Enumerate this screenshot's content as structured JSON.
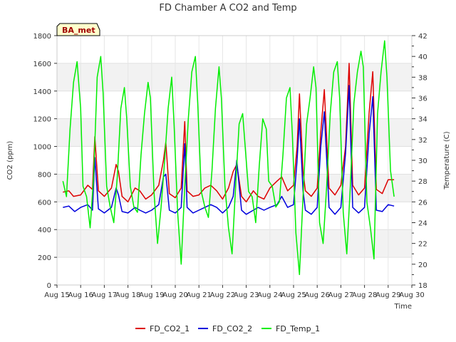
{
  "chart_data": {
    "type": "line",
    "title": "FD Chamber A CO2 and Temp",
    "xlabel": "Time",
    "ylabel": "CO2 (ppm)",
    "y2label": "Temperature (C)",
    "site_badge": "BA_met",
    "categories": [
      "Aug 15",
      "Aug 16",
      "Aug 17",
      "Aug 18",
      "Aug 19",
      "Aug 20",
      "Aug 21",
      "Aug 22",
      "Aug 23",
      "Aug 24",
      "Aug 25",
      "Aug 26",
      "Aug 27",
      "Aug 28",
      "Aug 29",
      "Aug 30"
    ],
    "xlim": [
      15,
      30
    ],
    "ylim": [
      0,
      1800
    ],
    "yticks": [
      0,
      200,
      400,
      600,
      800,
      1000,
      1200,
      1400,
      1600,
      1800
    ],
    "y2lim": [
      18,
      42
    ],
    "y2ticks": [
      18,
      20,
      22,
      24,
      26,
      28,
      30,
      32,
      34,
      36,
      38,
      40,
      42
    ],
    "grid": true,
    "legend_position": "bottom",
    "series": [
      {
        "name": "FD_CO2_1",
        "axis": "left",
        "color": "#dd0000",
        "x": [
          15.25,
          15.5,
          15.7,
          16.0,
          16.3,
          16.5,
          16.6,
          16.75,
          17.0,
          17.3,
          17.5,
          17.6,
          17.75,
          18.0,
          18.3,
          18.5,
          18.75,
          19.0,
          19.3,
          19.5,
          19.6,
          19.75,
          20.0,
          20.25,
          20.4,
          20.5,
          20.75,
          21.0,
          21.25,
          21.5,
          21.75,
          22.0,
          22.25,
          22.45,
          22.6,
          22.8,
          23.0,
          23.3,
          23.5,
          23.75,
          24.0,
          24.3,
          24.5,
          24.75,
          25.0,
          25.15,
          25.25,
          25.4,
          25.5,
          25.75,
          26.0,
          26.15,
          26.3,
          26.5,
          26.75,
          27.0,
          27.2,
          27.35,
          27.5,
          27.75,
          28.0,
          28.2,
          28.35,
          28.5,
          28.75,
          29.0,
          29.25
        ],
        "values": [
          670,
          680,
          640,
          650,
          720,
          690,
          1070,
          680,
          640,
          700,
          870,
          820,
          640,
          600,
          700,
          680,
          620,
          650,
          720,
          900,
          1030,
          660,
          630,
          700,
          1180,
          680,
          640,
          650,
          700,
          720,
          680,
          620,
          700,
          820,
          870,
          640,
          600,
          680,
          640,
          620,
          700,
          750,
          780,
          680,
          720,
          1000,
          1380,
          820,
          680,
          640,
          700,
          1100,
          1410,
          700,
          650,
          720,
          1000,
          1600,
          720,
          650,
          700,
          1250,
          1540,
          690,
          660,
          760,
          760
        ]
      },
      {
        "name": "FD_CO2_2",
        "axis": "left",
        "color": "#0000dd",
        "x": [
          15.25,
          15.5,
          15.75,
          16.0,
          16.3,
          16.5,
          16.6,
          16.75,
          17.0,
          17.3,
          17.5,
          17.6,
          17.75,
          18.0,
          18.3,
          18.5,
          18.75,
          19.0,
          19.3,
          19.5,
          19.6,
          19.75,
          20.0,
          20.25,
          20.4,
          20.5,
          20.75,
          21.0,
          21.25,
          21.5,
          21.75,
          22.0,
          22.25,
          22.45,
          22.6,
          22.8,
          23.0,
          23.3,
          23.5,
          23.75,
          24.0,
          24.3,
          24.5,
          24.75,
          25.0,
          25.15,
          25.25,
          25.4,
          25.5,
          25.75,
          26.0,
          26.15,
          26.3,
          26.5,
          26.75,
          27.0,
          27.2,
          27.35,
          27.5,
          27.75,
          28.0,
          28.2,
          28.35,
          28.5,
          28.75,
          29.0,
          29.25
        ],
        "values": [
          560,
          570,
          530,
          560,
          580,
          540,
          920,
          550,
          520,
          560,
          700,
          650,
          530,
          520,
          560,
          540,
          520,
          540,
          580,
          780,
          800,
          540,
          520,
          560,
          1020,
          560,
          520,
          540,
          560,
          580,
          560,
          520,
          560,
          640,
          900,
          540,
          510,
          540,
          560,
          540,
          560,
          580,
          640,
          560,
          580,
          900,
          1200,
          680,
          540,
          510,
          560,
          1000,
          1250,
          560,
          510,
          560,
          950,
          1440,
          560,
          520,
          560,
          1100,
          1360,
          540,
          530,
          580,
          570
        ]
      },
      {
        "name": "FD_Temp_1",
        "axis": "right",
        "color": "#00ee00",
        "x": [
          15.25,
          15.4,
          15.55,
          15.7,
          15.85,
          16.0,
          16.1,
          16.25,
          16.4,
          16.55,
          16.7,
          16.85,
          16.95,
          17.1,
          17.25,
          17.4,
          17.55,
          17.7,
          17.85,
          17.95,
          18.1,
          18.25,
          18.4,
          18.55,
          18.7,
          18.85,
          18.95,
          19.1,
          19.25,
          19.4,
          19.55,
          19.7,
          19.85,
          19.95,
          20.1,
          20.25,
          20.4,
          20.55,
          20.7,
          20.85,
          20.95,
          21.1,
          21.25,
          21.4,
          21.55,
          21.7,
          21.85,
          21.95,
          22.1,
          22.25,
          22.4,
          22.55,
          22.7,
          22.85,
          22.95,
          23.1,
          23.25,
          23.4,
          23.55,
          23.7,
          23.85,
          23.95,
          24.1,
          24.25,
          24.4,
          24.55,
          24.7,
          24.85,
          24.95,
          25.1,
          25.25,
          25.4,
          25.55,
          25.7,
          25.85,
          25.95,
          26.1,
          26.25,
          26.4,
          26.55,
          26.7,
          26.85,
          26.95,
          27.1,
          27.25,
          27.4,
          27.55,
          27.7,
          27.85,
          27.95,
          28.1,
          28.25,
          28.4,
          28.55,
          28.7,
          28.85,
          28.95,
          29.1,
          29.25
        ],
        "values": [
          28.0,
          26.5,
          33.0,
          37.5,
          39.5,
          35.0,
          27.5,
          26.5,
          23.5,
          28.5,
          38.0,
          40.0,
          36.5,
          27.5,
          25.5,
          24.0,
          28.5,
          35.0,
          37.0,
          34.0,
          27.5,
          25.5,
          25.0,
          30.5,
          34.5,
          37.5,
          36.0,
          27.0,
          22.0,
          25.5,
          30.0,
          35.0,
          38.0,
          33.5,
          25.0,
          20.0,
          27.5,
          34.0,
          38.5,
          40.0,
          35.5,
          27.0,
          25.5,
          24.5,
          29.0,
          35.0,
          39.0,
          36.0,
          27.5,
          23.5,
          21.0,
          27.5,
          33.5,
          34.5,
          31.5,
          27.0,
          26.5,
          24.0,
          29.5,
          34.0,
          33.0,
          28.0,
          27.5,
          25.5,
          26.0,
          30.5,
          36.0,
          37.0,
          32.5,
          23.0,
          19.0,
          26.5,
          33.5,
          36.0,
          39.0,
          37.0,
          24.0,
          22.0,
          27.5,
          34.5,
          38.5,
          39.5,
          36.0,
          25.0,
          21.0,
          27.5,
          35.5,
          38.5,
          40.5,
          39.0,
          26.0,
          23.5,
          20.5,
          34.5,
          38.5,
          41.5,
          38.0,
          29.0,
          26.5
        ]
      }
    ]
  }
}
